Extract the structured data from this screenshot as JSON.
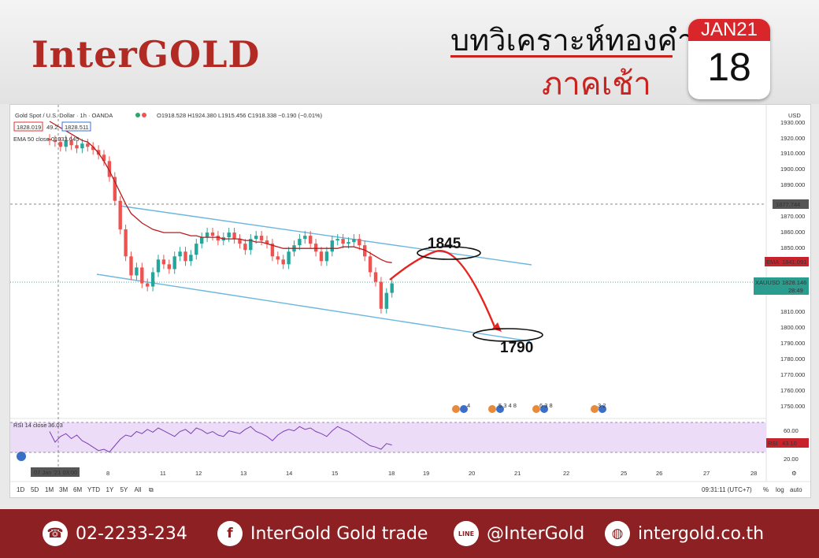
{
  "header": {
    "logo": "InterGOLD",
    "title_line1": "บทวิเคราะห์ทองคำ",
    "title_line2": "ภาคเช้า",
    "calendar_month": "JAN21",
    "calendar_day": "18"
  },
  "chart_header": {
    "symbol": "Gold Spot / U.S. Dollar · 1h · OANDA",
    "ohlc": "O1918.528 H1924.380 L1915.456 C1918.338 −0.190 (−0.01%)",
    "bid": "1828.019",
    "spread": "49.2",
    "ask": "1828.511",
    "ema_label": "EMA 50 close 0",
    "ema_value": "1933.645",
    "rsi_label": "RSI 14 close",
    "rsi_value": "36.03",
    "currency": "USD"
  },
  "chart_data": {
    "type": "line",
    "ylim": [
      1743,
      1932
    ],
    "y_ticks": [
      "1930.000",
      "1920.000",
      "1910.000",
      "1900.000",
      "1890.000",
      "1870.000",
      "1860.000",
      "1850.000",
      "1810.000",
      "1800.000",
      "1790.000",
      "1780.000",
      "1770.000",
      "1760.000",
      "1750.000"
    ],
    "x_ticks": [
      "8",
      "11",
      "12",
      "13",
      "14",
      "15",
      "18",
      "19",
      "20",
      "21",
      "22",
      "25",
      "26",
      "27",
      "28"
    ],
    "x_tick_pos": [
      122,
      190,
      235,
      292,
      350,
      408,
      480,
      524,
      582,
      640,
      702,
      775,
      820,
      880,
      940
    ],
    "date_badge": "07 Jan '21  03:00",
    "series": [
      {
        "name": "XAUUSD",
        "values": [
          1918,
          1917,
          1914,
          1918,
          1915,
          1913,
          1916,
          1914,
          1912,
          1909,
          1905,
          1895,
          1880,
          1862,
          1845,
          1833,
          1838,
          1828,
          1826,
          1835,
          1843,
          1840,
          1837,
          1845,
          1848,
          1842,
          1846,
          1853,
          1857,
          1860,
          1858,
          1855,
          1857,
          1860,
          1856,
          1853,
          1849,
          1856,
          1858,
          1855,
          1853,
          1845,
          1843,
          1840,
          1848,
          1852,
          1856,
          1858,
          1853,
          1848,
          1842,
          1848,
          1855,
          1856,
          1853,
          1854,
          1856,
          1852,
          1845,
          1835,
          1829,
          1812,
          1822,
          1828
        ]
      },
      {
        "name": "EMA",
        "values": [
          1930,
          1928,
          1926,
          1924,
          1922,
          1920,
          1918,
          1917,
          1914,
          1910,
          1905,
          1899,
          1892,
          1885,
          1878,
          1872,
          1869,
          1866,
          1864,
          1862,
          1861,
          1860,
          1860,
          1860,
          1860,
          1859,
          1858,
          1858,
          1857,
          1857,
          1857,
          1857,
          1856,
          1856,
          1856,
          1856,
          1855,
          1855,
          1854,
          1854,
          1853,
          1852,
          1851,
          1850,
          1850,
          1850,
          1850,
          1850,
          1850,
          1850,
          1850,
          1850,
          1850,
          1850,
          1851,
          1851,
          1851,
          1850,
          1849,
          1847,
          1845,
          1843,
          1841.5,
          1841
        ]
      },
      {
        "name": "RSI",
        "values": [
          55,
          40,
          48,
          52,
          45,
          50,
          42,
          38,
          33,
          28,
          30,
          26,
          35,
          44,
          50,
          48,
          55,
          52,
          58,
          54,
          60,
          56,
          52,
          48,
          55,
          58,
          52,
          60,
          57,
          52,
          55,
          50,
          48,
          56,
          54,
          52,
          58,
          62,
          55,
          52,
          48,
          42,
          50,
          55,
          58,
          56,
          62,
          58,
          60,
          55,
          52,
          48,
          56,
          62,
          58,
          55,
          50,
          45,
          40,
          35,
          33,
          30,
          38,
          36
        ]
      }
    ],
    "price_labels": {
      "ema": "1841.091",
      "xauusd": "1828.146",
      "countdown": "28:49",
      "crosshair": "1877.744",
      "rsi": "43.10"
    },
    "rsi_ticks": [
      "60.00",
      "20.00"
    ],
    "tags": {
      "ema": "EMA",
      "xauusd": "XAUUSD",
      "rsi": "RSI"
    },
    "annotations": {
      "target_high": "1845",
      "target_low": "1790"
    },
    "event_labels": [
      "4",
      "5 3 4 8",
      "6 3 8",
      "3 2"
    ],
    "event_start": "1"
  },
  "toolbar": {
    "ranges": [
      "1D",
      "5D",
      "1M",
      "3M",
      "6M",
      "YTD",
      "1Y",
      "5Y",
      "All"
    ],
    "time": "09:31:11 (UTC+7)",
    "pct": "%",
    "log": "log",
    "auto": "auto"
  },
  "footer": {
    "phone": "02-2233-234",
    "facebook": "InterGold Gold trade",
    "line": "@InterGold",
    "web": "intergold.co.th",
    "fb_icon": "f",
    "line_icon": "LINE"
  }
}
